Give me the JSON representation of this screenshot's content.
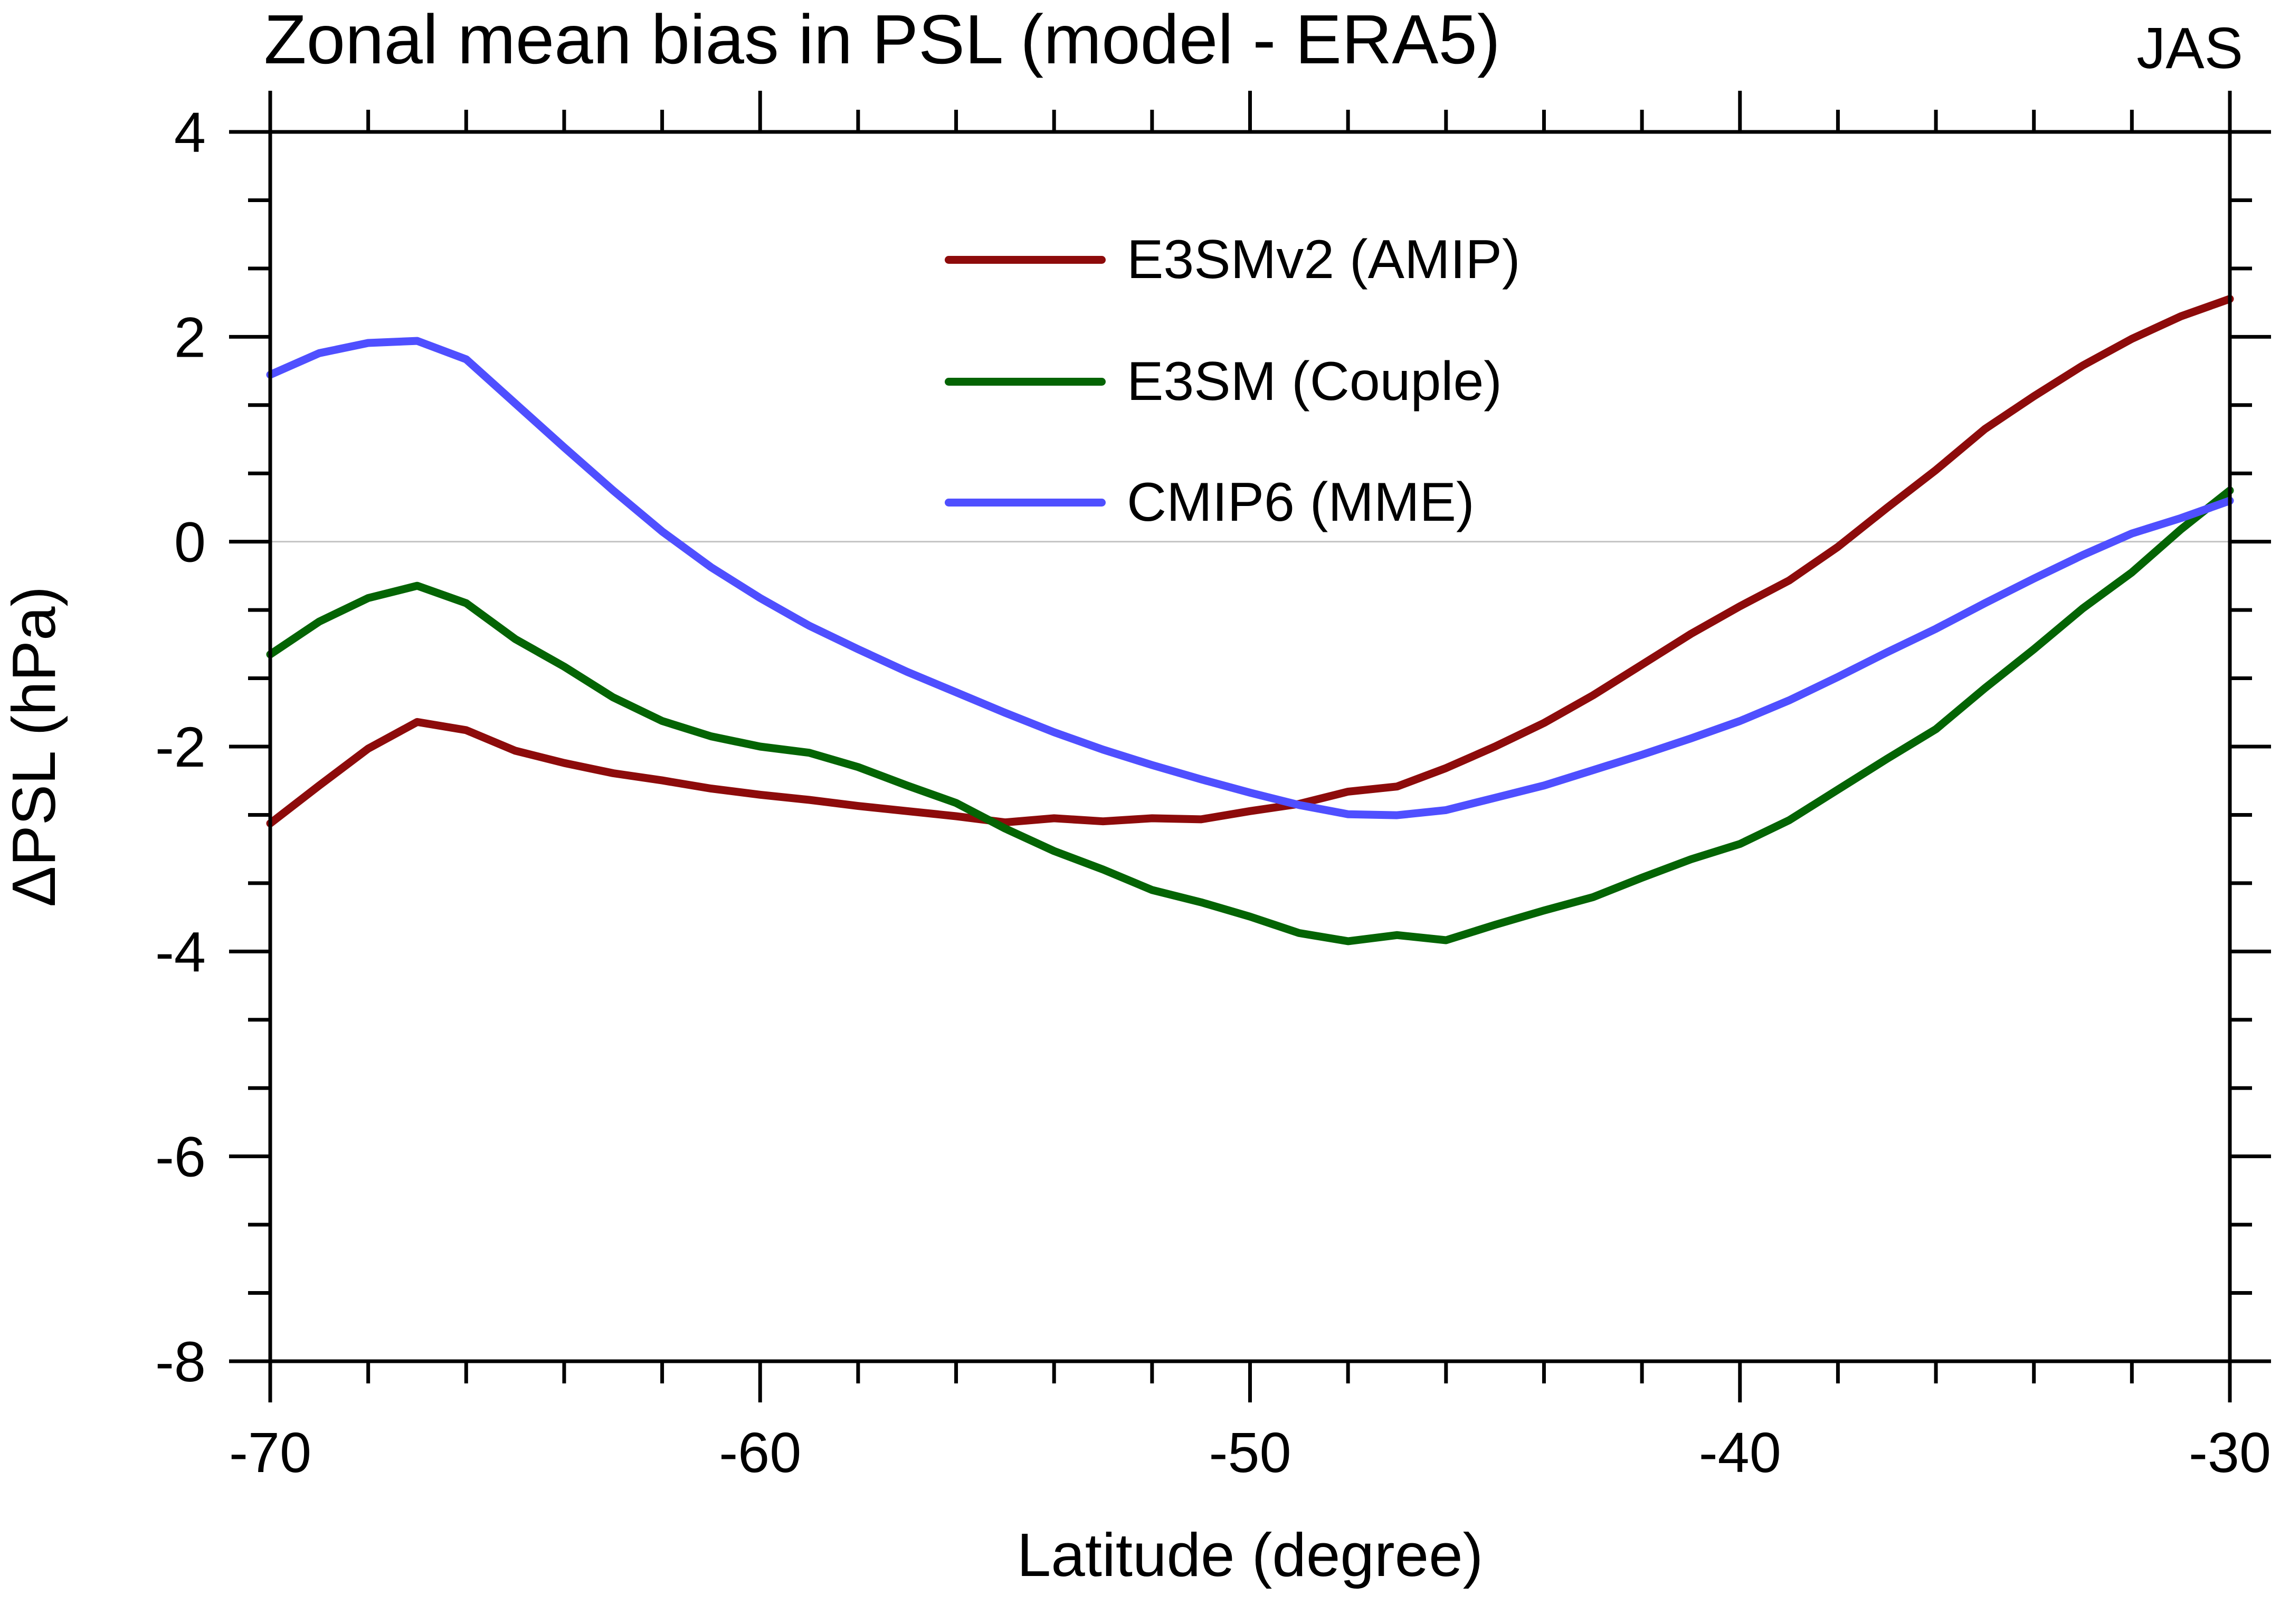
{
  "chart_data": {
    "type": "line",
    "title": "Zonal mean bias in PSL (model - ERA5)",
    "top_right_label": "JAS",
    "xlabel": "Latitude (degree)",
    "ylabel": "ΔPSL (hPa)",
    "xlim": [
      -70,
      -30
    ],
    "ylim": [
      -8,
      4
    ],
    "x_ticks_major": [
      -70,
      -60,
      -50,
      -40,
      -30
    ],
    "x_tick_labels": [
      "-70",
      "-60",
      "-50",
      "-40",
      "-30"
    ],
    "x_minor_step": 2,
    "y_ticks_major": [
      4,
      2,
      0,
      -2,
      -4,
      -6,
      -8
    ],
    "y_tick_labels": [
      "4",
      "2",
      "0",
      "-2",
      "-4",
      "-6",
      "-8"
    ],
    "y_minors_per_major_interval": 2,
    "grid": "zero-line-only",
    "zero_line_color": "#c4c4c4",
    "frame_color": "#000000",
    "background": "#ffffff",
    "legend_position": "inside-upper-middle",
    "x": [
      -70,
      -69,
      -68,
      -67,
      -66,
      -65,
      -64,
      -63,
      -62,
      -61,
      -60,
      -59,
      -58,
      -57,
      -56,
      -55,
      -54,
      -53,
      -52,
      -51,
      -50,
      -49,
      -48,
      -47,
      -46,
      -45,
      -44,
      -43,
      -42,
      -41,
      -40,
      -39,
      -38,
      -37,
      -36,
      -35,
      -34,
      -33,
      -32,
      -31,
      -30
    ],
    "series": [
      {
        "name": "E3SMv2 (AMIP)",
        "color": "#8d0b0b",
        "values": [
          -2.75,
          -2.38,
          -2.02,
          -1.76,
          -1.84,
          -2.04,
          -2.16,
          -2.26,
          -2.33,
          -2.41,
          -2.47,
          -2.52,
          -2.58,
          -2.63,
          -2.68,
          -2.74,
          -2.7,
          -2.73,
          -2.7,
          -2.71,
          -2.63,
          -2.56,
          -2.44,
          -2.39,
          -2.21,
          -2.0,
          -1.77,
          -1.5,
          -1.2,
          -0.9,
          -0.63,
          -0.38,
          -0.05,
          0.33,
          0.7,
          1.1,
          1.42,
          1.72,
          1.98,
          2.2,
          2.37
        ]
      },
      {
        "name": "E3SM (Couple)",
        "color": "#046404",
        "values": [
          -1.1,
          -0.78,
          -0.55,
          -0.43,
          -0.6,
          -0.95,
          -1.22,
          -1.52,
          -1.75,
          -1.9,
          -2.0,
          -2.06,
          -2.2,
          -2.38,
          -2.55,
          -2.8,
          -3.02,
          -3.2,
          -3.4,
          -3.52,
          -3.66,
          -3.82,
          -3.9,
          -3.84,
          -3.89,
          -3.74,
          -3.6,
          -3.47,
          -3.28,
          -3.1,
          -2.95,
          -2.72,
          -2.42,
          -2.12,
          -1.83,
          -1.43,
          -1.05,
          -0.65,
          -0.3,
          0.12,
          0.5
        ]
      },
      {
        "name": "CMIP6 (MME)",
        "color": "#4f4fff",
        "values": [
          1.63,
          1.84,
          1.94,
          1.96,
          1.78,
          1.35,
          0.92,
          0.5,
          0.1,
          -0.25,
          -0.55,
          -0.82,
          -1.05,
          -1.27,
          -1.47,
          -1.67,
          -1.86,
          -2.03,
          -2.18,
          -2.32,
          -2.45,
          -2.57,
          -2.66,
          -2.67,
          -2.62,
          -2.5,
          -2.38,
          -2.23,
          -2.08,
          -1.92,
          -1.75,
          -1.55,
          -1.32,
          -1.08,
          -0.85,
          -0.6,
          -0.36,
          -0.13,
          0.08,
          0.23,
          0.4
        ]
      }
    ],
    "legend": [
      {
        "label": "E3SMv2 (AMIP)",
        "color": "#8d0b0b"
      },
      {
        "label": "E3SM (Couple)",
        "color": "#046404"
      },
      {
        "label": "CMIP6 (MME)",
        "color": "#4f4fff"
      }
    ]
  },
  "layout_note_values_visible_only": true
}
